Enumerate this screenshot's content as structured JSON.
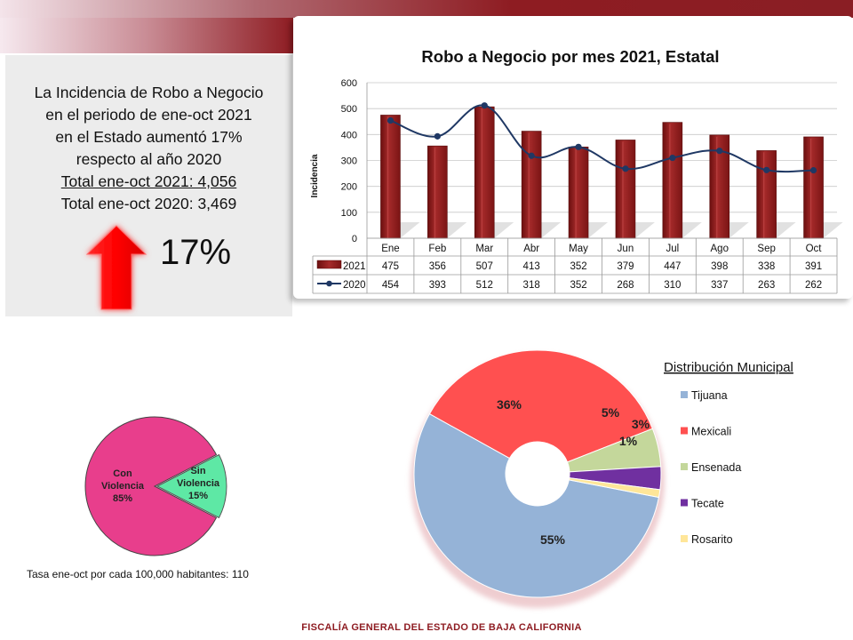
{
  "summary": {
    "line1": "La Incidencia de Robo a Negocio",
    "line2": "en el periodo de  ene-oct  2021",
    "line3": "en el Estado aumentó 17%",
    "line4": "respecto al año 2020",
    "line5": "Total ene-oct 2021:  4,056",
    "line6": "Total ene-oct 2020:  3,469",
    "change_pct": "17%",
    "arrow_icon": "up-arrow-icon",
    "arrow_color": "#ff0000"
  },
  "tasa": "Tasa  ene-oct por cada 100,000  habitantes: 110",
  "footer": "FISCALÍA GENERAL DEL ESTADO DE BAJA CALIFORNIA",
  "chart_data": [
    {
      "type": "bar",
      "title": "Robo a Negocio por mes 2021, Estatal",
      "ylabel": "Incidencia",
      "ylim": [
        0,
        600
      ],
      "yticks": [
        0,
        100,
        200,
        300,
        400,
        500,
        600
      ],
      "grid": true,
      "categories": [
        "Ene",
        "Feb",
        "Mar",
        "Abr",
        "May",
        "Jun",
        "Jul",
        "Ago",
        "Sep",
        "Oct"
      ],
      "series": [
        {
          "name": "2021",
          "type": "bar",
          "color": "#8b1a1a",
          "values": [
            475,
            356,
            507,
            413,
            352,
            379,
            447,
            398,
            338,
            391
          ]
        },
        {
          "name": "2020",
          "type": "line",
          "color": "#1f3864",
          "values": [
            454,
            393,
            512,
            318,
            352,
            268,
            310,
            337,
            263,
            262
          ]
        }
      ],
      "data_table": true
    },
    {
      "type": "pie",
      "labels": [
        "Con\nViolencia\n85%",
        "Sin\nViolencia\n15%"
      ],
      "categories": [
        "Con Violencia",
        "Sin Violencia"
      ],
      "values": [
        85,
        15
      ],
      "colors": [
        "#e83e8c",
        "#5ee8a5"
      ]
    },
    {
      "type": "pie",
      "style": "doughnut",
      "title": "Distribución Municipal",
      "categories": [
        "Tijuana",
        "Mexicali",
        "Ensenada",
        "Tecate",
        "Rosarito"
      ],
      "values": [
        55,
        36,
        5,
        3,
        1
      ],
      "labels": [
        "55%",
        "36%",
        "5%",
        "3%",
        "1%"
      ],
      "colors": [
        "#95b3d7",
        "#ff5050",
        "#c4d79b",
        "#7030a0",
        "#ffe699"
      ],
      "legend": "right"
    }
  ]
}
